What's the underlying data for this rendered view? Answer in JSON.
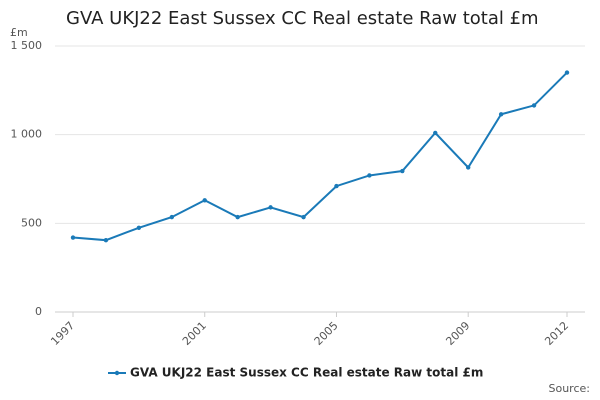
{
  "chart_data": {
    "type": "line",
    "title": "GVA UKJ22 East Sussex CC Real estate Raw total £m",
    "y_unit": "£m",
    "source": "Source:",
    "x": [
      1997,
      1998,
      1999,
      2000,
      2001,
      2002,
      2003,
      2004,
      2005,
      2006,
      2007,
      2008,
      2009,
      2010,
      2011,
      2012
    ],
    "xlim": [
      1997,
      2012
    ],
    "xticks": [
      1997,
      2001,
      2005,
      2009,
      2012
    ],
    "ylim": [
      0,
      1500
    ],
    "yticks": [
      0,
      500,
      {
        "value": 1000,
        "label": "1 000"
      },
      {
        "value": 1500,
        "label": "1 500"
      }
    ],
    "grid": true,
    "series": [
      {
        "name": "GVA UKJ22 East Sussex CC Real estate Raw total £m",
        "color": "#1a7ab8",
        "values": [
          420,
          405,
          475,
          535,
          630,
          535,
          590,
          535,
          710,
          770,
          795,
          1010,
          815,
          1115,
          1165,
          1350
        ]
      }
    ]
  }
}
